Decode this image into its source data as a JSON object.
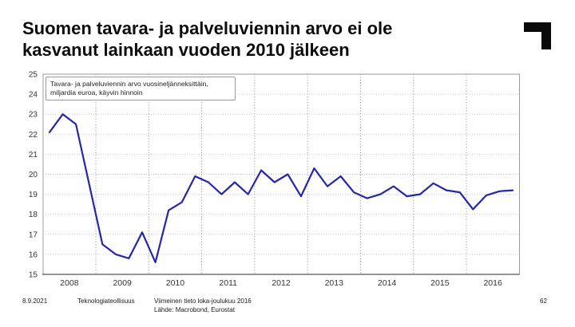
{
  "slide": {
    "title_lines": [
      "Suomen tavara- ja palveluviennin arvo ei ole",
      "kasvanut lainkaan vuoden 2010 jälkeen"
    ],
    "logo_name": "teknologiateollisuus-corner-logo"
  },
  "footer": {
    "date": "8.9.2021",
    "org": "Teknologiateollisuus",
    "note_line1": "Viimeinen tieto loka-joulukuu 2016",
    "note_line2": "Lähde: Macrobond, Eurostat",
    "page": "62"
  },
  "chart_data": {
    "type": "line",
    "annotation_line1": "Tavara- ja palveluviennin arvo vuosineljänneksittäin,",
    "annotation_line2": "miljardia euroa, käyvin hinnoin",
    "x_start": "2008Q1",
    "x_freq": "quarterly",
    "categories": [
      "2008Q1",
      "2008Q2",
      "2008Q3",
      "2008Q4",
      "2009Q1",
      "2009Q2",
      "2009Q3",
      "2009Q4",
      "2010Q1",
      "2010Q2",
      "2010Q3",
      "2010Q4",
      "2011Q1",
      "2011Q2",
      "2011Q3",
      "2011Q4",
      "2012Q1",
      "2012Q2",
      "2012Q3",
      "2012Q4",
      "2013Q1",
      "2013Q2",
      "2013Q3",
      "2013Q4",
      "2014Q1",
      "2014Q2",
      "2014Q3",
      "2014Q4",
      "2015Q1",
      "2015Q2",
      "2015Q3",
      "2015Q4",
      "2016Q1",
      "2016Q2",
      "2016Q3",
      "2016Q4"
    ],
    "series": [
      {
        "name": "Tavara- ja palveluviennin arvo, mrd. euroa",
        "color": "#2626ab",
        "values": [
          22.1,
          23.0,
          22.5,
          19.5,
          16.5,
          16.0,
          15.8,
          17.1,
          15.6,
          18.2,
          18.6,
          19.9,
          19.6,
          19.0,
          19.6,
          19.0,
          20.2,
          19.6,
          20.0,
          18.9,
          20.3,
          19.4,
          19.9,
          19.1,
          18.8,
          19.0,
          19.4,
          18.9,
          19.0,
          19.55,
          19.2,
          19.1,
          18.25,
          18.95,
          19.15,
          19.2
        ]
      }
    ],
    "year_tick_labels": [
      "2008",
      "2009",
      "2010",
      "2011",
      "2012",
      "2013",
      "2014",
      "2015",
      "2016"
    ],
    "y_ticks": [
      15,
      16,
      17,
      18,
      19,
      20,
      21,
      22,
      23,
      24,
      25
    ],
    "ylim": [
      15,
      25
    ],
    "grid": "on",
    "legend_position": "none",
    "axis_color": "#9a9a9a",
    "gridline_color": "#c9c9c9",
    "year_gridline_color": "#8f8f8f",
    "tick_label_color": "#333333"
  }
}
